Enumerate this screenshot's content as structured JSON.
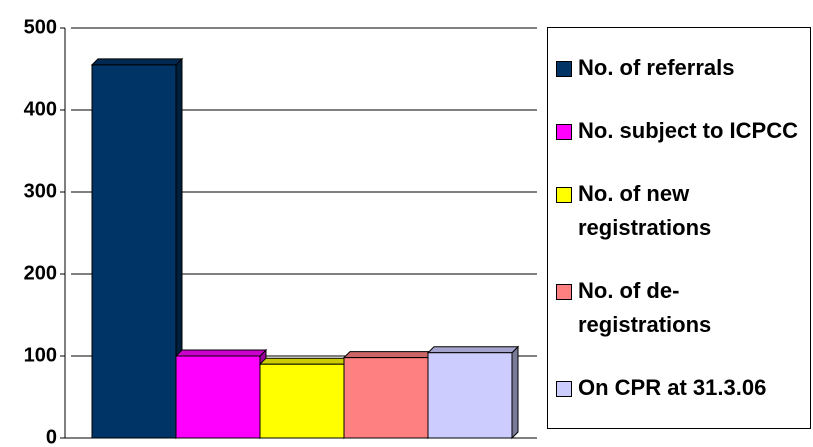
{
  "chart_data": {
    "type": "bar",
    "series": [
      {
        "name": "No. of referrals",
        "color": "#003366",
        "values": [
          455
        ]
      },
      {
        "name": "No. subject to ICPCC",
        "color": "#ff00ff",
        "values": [
          100
        ]
      },
      {
        "name": "No. of new registrations",
        "color": "#ffff00",
        "values": [
          90
        ]
      },
      {
        "name": "No. of de-registrations",
        "color": "#ff8080",
        "values": [
          98
        ]
      },
      {
        "name": "On CPR at 31.3.06",
        "color": "#ccccff",
        "values": [
          104
        ]
      }
    ],
    "ylim": [
      0,
      500
    ],
    "yticks": [
      0,
      100,
      200,
      300,
      400,
      500
    ],
    "grid": true
  }
}
